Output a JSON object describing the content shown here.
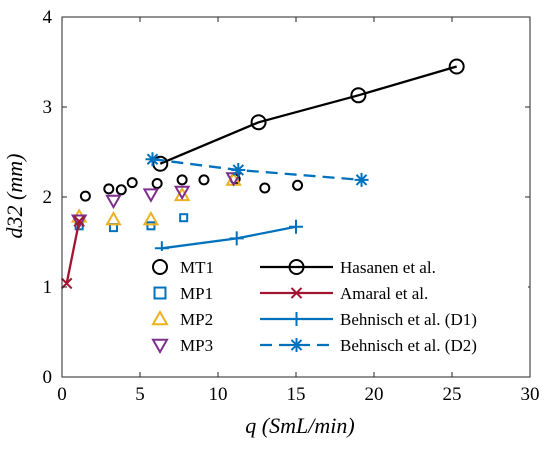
{
  "chart_data": {
    "type": "scatter",
    "xlabel": "q (SmL/min)",
    "ylabel": "d32 (mm)",
    "xlim": [
      0,
      30
    ],
    "ylim": [
      0,
      4
    ],
    "xticks": [
      "0",
      "5",
      "10",
      "15",
      "20",
      "25",
      "30"
    ],
    "yticks": [
      "0",
      "1",
      "2",
      "3",
      "4"
    ],
    "grid": false,
    "legend_position": "bottom-right",
    "colors": {
      "black": "#000000",
      "blue": "#0072BD",
      "orange": "#EDB120",
      "purple": "#7E2F8E",
      "red": "#A2142F"
    },
    "series": [
      {
        "name": "MT1",
        "kind": "markers",
        "marker": "circle",
        "color": "#000000",
        "x": [
          1.5,
          3.0,
          3.8,
          4.5,
          6.1,
          7.7,
          9.1,
          11.1,
          13.0,
          15.1
        ],
        "y": [
          2.01,
          2.09,
          2.08,
          2.16,
          2.15,
          2.19,
          2.19,
          2.2,
          2.1,
          2.13
        ]
      },
      {
        "name": "MP1",
        "kind": "markers",
        "marker": "square",
        "color": "#0072BD",
        "x": [
          1.1,
          3.3,
          5.7,
          7.8
        ],
        "y": [
          1.68,
          1.66,
          1.68,
          1.77
        ]
      },
      {
        "name": "MP2",
        "kind": "markers",
        "marker": "triangle-up",
        "color": "#EDB120",
        "x": [
          1.1,
          3.3,
          5.7,
          7.7,
          11.0
        ],
        "y": [
          1.78,
          1.75,
          1.75,
          2.02,
          2.19
        ]
      },
      {
        "name": "MP3",
        "kind": "markers",
        "marker": "triangle-down",
        "color": "#7E2F8E",
        "x": [
          1.1,
          3.3,
          5.7,
          7.7,
          11.0
        ],
        "y": [
          1.74,
          1.96,
          2.03,
          2.06,
          2.21
        ]
      },
      {
        "name": "Hasanen et al.",
        "kind": "line",
        "marker": "circle",
        "dash": "solid",
        "color": "#000000",
        "x": [
          6.3,
          12.6,
          19.0,
          25.3
        ],
        "y": [
          2.37,
          2.83,
          3.13,
          3.45
        ]
      },
      {
        "name": "Amaral et al.",
        "kind": "line",
        "marker": "x",
        "dash": "solid",
        "color": "#A2142F",
        "x": [
          0.3,
          1.1
        ],
        "y": [
          1.04,
          1.73
        ]
      },
      {
        "name": "Behnisch et al. (D1)",
        "kind": "line",
        "marker": "plus",
        "dash": "solid",
        "color": "#0072BD",
        "x": [
          6.4,
          11.2,
          15.0
        ],
        "y": [
          1.43,
          1.54,
          1.67
        ]
      },
      {
        "name": "Behnisch et al. (D2)",
        "kind": "line",
        "marker": "asterisk",
        "dash": "dashed",
        "color": "#0072BD",
        "x": [
          5.8,
          11.3,
          19.2
        ],
        "y": [
          2.42,
          2.3,
          2.19
        ]
      }
    ]
  }
}
